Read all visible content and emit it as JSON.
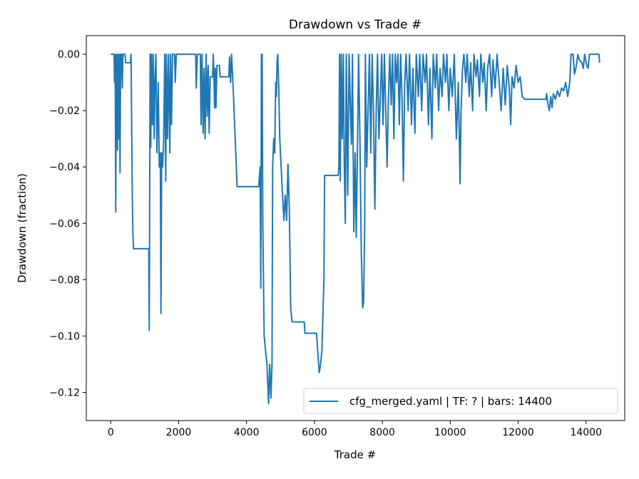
{
  "chart_data": {
    "type": "line",
    "title": "Drawdown vs Trade #",
    "xlabel": "Trade #",
    "ylabel": "Drawdown (fraction)",
    "xlim": [
      -720,
      15140
    ],
    "ylim": [
      -0.13,
      0.0066
    ],
    "xticks": [
      0,
      2000,
      4000,
      6000,
      8000,
      10000,
      12000,
      14000
    ],
    "xtick_labels": [
      "0",
      "2000",
      "4000",
      "6000",
      "8000",
      "10000",
      "12000",
      "14000"
    ],
    "yticks": [
      0,
      -0.02,
      -0.04,
      -0.06,
      -0.08,
      -0.1,
      -0.12
    ],
    "ytick_labels": [
      "0.00",
      "−0.02",
      "−0.04",
      "−0.06",
      "−0.08",
      "−0.10",
      "−0.12"
    ],
    "grid": false,
    "legend_placement": "lower-right",
    "series": [
      {
        "name": "cfg_merged.yaml | TF: ? | bars: 14400",
        "color": "#1f77b4",
        "points": [
          [
            0,
            0
          ],
          [
            100,
            0
          ],
          [
            110,
            -0.01
          ],
          [
            130,
            0
          ],
          [
            147,
            -0.056
          ],
          [
            160,
            -0.01
          ],
          [
            175,
            0
          ],
          [
            200,
            -0.034
          ],
          [
            215,
            0
          ],
          [
            240,
            -0.03
          ],
          [
            260,
            0
          ],
          [
            273,
            -0.042
          ],
          [
            290,
            0
          ],
          [
            320,
            0
          ],
          [
            340,
            -0.012
          ],
          [
            360,
            0
          ],
          [
            420,
            0
          ],
          [
            440,
            -0.003
          ],
          [
            580,
            -0.003
          ],
          [
            600,
            0
          ],
          [
            630,
            -0.045
          ],
          [
            650,
            -0.062
          ],
          [
            670,
            -0.069
          ],
          [
            1120,
            -0.069
          ],
          [
            1135,
            -0.098
          ],
          [
            1160,
            0
          ],
          [
            1180,
            -0.033
          ],
          [
            1200,
            0
          ],
          [
            1230,
            -0.025
          ],
          [
            1250,
            0
          ],
          [
            1280,
            -0.03
          ],
          [
            1300,
            -0.01
          ],
          [
            1330,
            0
          ],
          [
            1360,
            -0.035
          ],
          [
            1400,
            -0.01
          ],
          [
            1430,
            -0.04
          ],
          [
            1460,
            -0.035
          ],
          [
            1480,
            -0.092
          ],
          [
            1500,
            -0.035
          ],
          [
            1530,
            -0.04
          ],
          [
            1560,
            -0.03
          ],
          [
            1590,
            0
          ],
          [
            1620,
            -0.045
          ],
          [
            1640,
            0
          ],
          [
            1670,
            -0.03
          ],
          [
            1700,
            0
          ],
          [
            1740,
            -0.035
          ],
          [
            1760,
            0
          ],
          [
            1790,
            -0.025
          ],
          [
            1820,
            0
          ],
          [
            1880,
            0
          ],
          [
            1900,
            -0.01
          ],
          [
            1930,
            0
          ],
          [
            2500,
            0
          ],
          [
            2520,
            -0.012
          ],
          [
            2550,
            0
          ],
          [
            2640,
            0
          ],
          [
            2660,
            -0.025
          ],
          [
            2690,
            0
          ],
          [
            2720,
            -0.028
          ],
          [
            2750,
            -0.005
          ],
          [
            2780,
            -0.03
          ],
          [
            2810,
            0
          ],
          [
            2840,
            -0.022
          ],
          [
            2870,
            -0.004
          ],
          [
            2900,
            -0.028
          ],
          [
            2930,
            -0.008
          ],
          [
            3000,
            -0.008
          ],
          [
            3020,
            0
          ],
          [
            3040,
            -0.008
          ],
          [
            3060,
            -0.019
          ],
          [
            3080,
            -0.005
          ],
          [
            3100,
            -0.019
          ],
          [
            3130,
            -0.004
          ],
          [
            3200,
            -0.004
          ],
          [
            3220,
            -0.008
          ],
          [
            3480,
            -0.008
          ],
          [
            3500,
            -0.001
          ],
          [
            3530,
            -0.01
          ],
          [
            3560,
            0
          ],
          [
            3600,
            -0.01
          ],
          [
            3650,
            -0.025
          ],
          [
            3700,
            -0.04
          ],
          [
            3720,
            -0.047
          ],
          [
            4360,
            -0.047
          ],
          [
            4400,
            -0.04
          ],
          [
            4420,
            -0.083
          ],
          [
            4440,
            0
          ],
          [
            4460,
            0
          ],
          [
            4480,
            -0.06
          ],
          [
            4520,
            -0.1
          ],
          [
            4560,
            -0.105
          ],
          [
            4600,
            -0.11
          ],
          [
            4650,
            -0.124
          ],
          [
            4680,
            -0.11
          ],
          [
            4720,
            -0.122
          ],
          [
            4750,
            -0.11
          ],
          [
            4770,
            -0.04
          ],
          [
            4800,
            -0.03
          ],
          [
            4830,
            -0.035
          ],
          [
            4860,
            -0.01
          ],
          [
            4880,
            -0.015
          ],
          [
            4900,
            -0.003
          ],
          [
            4920,
            0
          ],
          [
            4950,
            -0.012
          ],
          [
            4980,
            -0.03
          ],
          [
            5020,
            -0.04
          ],
          [
            5060,
            -0.05
          ],
          [
            5100,
            -0.059
          ],
          [
            5140,
            -0.05
          ],
          [
            5180,
            -0.059
          ],
          [
            5220,
            -0.039
          ],
          [
            5260,
            -0.055
          ],
          [
            5300,
            -0.09
          ],
          [
            5340,
            -0.095
          ],
          [
            5700,
            -0.095
          ],
          [
            5720,
            -0.099
          ],
          [
            6060,
            -0.099
          ],
          [
            6100,
            -0.106
          ],
          [
            6140,
            -0.113
          ],
          [
            6180,
            -0.11
          ],
          [
            6220,
            -0.105
          ],
          [
            6280,
            -0.08
          ],
          [
            6300,
            -0.043
          ],
          [
            6700,
            -0.043
          ],
          [
            6720,
            -0.04
          ],
          [
            6740,
            0
          ],
          [
            6760,
            -0.045
          ],
          [
            6790,
            0
          ],
          [
            6820,
            -0.03
          ],
          [
            6850,
            0
          ],
          [
            6880,
            -0.04
          ],
          [
            6910,
            -0.06
          ],
          [
            6940,
            0
          ],
          [
            6980,
            -0.05
          ],
          [
            7020,
            0
          ],
          [
            7060,
            -0.02
          ],
          [
            7090,
            -0.032
          ],
          [
            7120,
            0
          ],
          [
            7160,
            -0.063
          ],
          [
            7200,
            -0.035
          ],
          [
            7230,
            -0.065
          ],
          [
            7260,
            -0.04
          ],
          [
            7300,
            0
          ],
          [
            7340,
            -0.03
          ],
          [
            7380,
            -0.07
          ],
          [
            7420,
            -0.09
          ],
          [
            7450,
            -0.088
          ],
          [
            7480,
            -0.06
          ],
          [
            7500,
            0
          ],
          [
            7540,
            -0.04
          ],
          [
            7580,
            -0.02
          ],
          [
            7620,
            0
          ],
          [
            7660,
            -0.035
          ],
          [
            7700,
            0
          ],
          [
            7740,
            -0.02
          ],
          [
            7780,
            -0.055
          ],
          [
            7820,
            -0.02
          ],
          [
            7860,
            0
          ],
          [
            7900,
            -0.03
          ],
          [
            7940,
            -0.015
          ],
          [
            7980,
            0
          ],
          [
            8020,
            -0.025
          ],
          [
            8060,
            0
          ],
          [
            8100,
            -0.02
          ],
          [
            8140,
            -0.04
          ],
          [
            8180,
            -0.015
          ],
          [
            8220,
            0
          ],
          [
            8260,
            -0.018
          ],
          [
            8300,
            0
          ],
          [
            8340,
            -0.03
          ],
          [
            8380,
            0
          ],
          [
            8420,
            -0.01
          ],
          [
            8460,
            0
          ],
          [
            8500,
            -0.025
          ],
          [
            8540,
            0
          ],
          [
            8580,
            -0.015
          ],
          [
            8620,
            -0.045
          ],
          [
            8660,
            -0.01
          ],
          [
            8700,
            0
          ],
          [
            8760,
            -0.02
          ],
          [
            8800,
            0
          ],
          [
            8860,
            -0.025
          ],
          [
            8900,
            -0.005
          ],
          [
            8960,
            -0.028
          ],
          [
            9000,
            0
          ],
          [
            9060,
            -0.015
          ],
          [
            9100,
            0
          ],
          [
            9160,
            -0.02
          ],
          [
            9200,
            0
          ],
          [
            9260,
            -0.01
          ],
          [
            9300,
            0
          ],
          [
            9360,
            -0.025
          ],
          [
            9400,
            -0.005
          ],
          [
            9460,
            -0.03
          ],
          [
            9500,
            0
          ],
          [
            9560,
            -0.012
          ],
          [
            9600,
            0
          ],
          [
            9660,
            -0.02
          ],
          [
            9700,
            -0.005
          ],
          [
            9760,
            -0.015
          ],
          [
            9800,
            0
          ],
          [
            9860,
            -0.01
          ],
          [
            9900,
            0
          ],
          [
            9960,
            -0.02
          ],
          [
            10000,
            -0.005
          ],
          [
            10060,
            -0.015
          ],
          [
            10120,
            0
          ],
          [
            10180,
            -0.03
          ],
          [
            10240,
            -0.01
          ],
          [
            10290,
            -0.046
          ],
          [
            10320,
            -0.02
          ],
          [
            10360,
            -0.005
          ],
          [
            10400,
            0
          ],
          [
            10460,
            -0.01
          ],
          [
            10500,
            0
          ],
          [
            10560,
            -0.015
          ],
          [
            10600,
            -0.003
          ],
          [
            10660,
            -0.02
          ],
          [
            10700,
            0
          ],
          [
            10760,
            -0.008
          ],
          [
            10800,
            -0.002
          ],
          [
            10860,
            -0.015
          ],
          [
            10900,
            0
          ],
          [
            10960,
            -0.01
          ],
          [
            11000,
            -0.003
          ],
          [
            11060,
            -0.02
          ],
          [
            11100,
            -0.005
          ],
          [
            11160,
            0
          ],
          [
            11220,
            -0.015
          ],
          [
            11260,
            -0.002
          ],
          [
            11320,
            -0.012
          ],
          [
            11380,
            0
          ],
          [
            11440,
            -0.01
          ],
          [
            11500,
            -0.02
          ],
          [
            11560,
            -0.005
          ],
          [
            11620,
            -0.018
          ],
          [
            11680,
            -0.004
          ],
          [
            11740,
            -0.012
          ],
          [
            11780,
            -0.025
          ],
          [
            11820,
            -0.008
          ],
          [
            11880,
            -0.012
          ],
          [
            11940,
            -0.004
          ],
          [
            12000,
            -0.01
          ],
          [
            12060,
            -0.008
          ],
          [
            12120,
            -0.015
          ],
          [
            12200,
            -0.016
          ],
          [
            12820,
            -0.016
          ],
          [
            12840,
            -0.014
          ],
          [
            12880,
            -0.018
          ],
          [
            12920,
            -0.02
          ],
          [
            12960,
            -0.015
          ],
          [
            13000,
            -0.019
          ],
          [
            13040,
            -0.014
          ],
          [
            13100,
            -0.016
          ],
          [
            13160,
            -0.013
          ],
          [
            13220,
            -0.015
          ],
          [
            13280,
            -0.012
          ],
          [
            13340,
            -0.013
          ],
          [
            13400,
            -0.01
          ],
          [
            13460,
            -0.015
          ],
          [
            13520,
            -0.01
          ],
          [
            13560,
            0
          ],
          [
            13620,
            0
          ],
          [
            13660,
            -0.007
          ],
          [
            13700,
            -0.005
          ],
          [
            13760,
            0
          ],
          [
            13800,
            -0.002
          ],
          [
            13880,
            -0.003
          ],
          [
            13920,
            -0.005
          ],
          [
            13960,
            0
          ],
          [
            14020,
            -0.004
          ],
          [
            14060,
            -0.005
          ],
          [
            14100,
            0
          ],
          [
            14200,
            0
          ],
          [
            14380,
            0
          ],
          [
            14400,
            -0.003
          ]
        ]
      }
    ]
  }
}
